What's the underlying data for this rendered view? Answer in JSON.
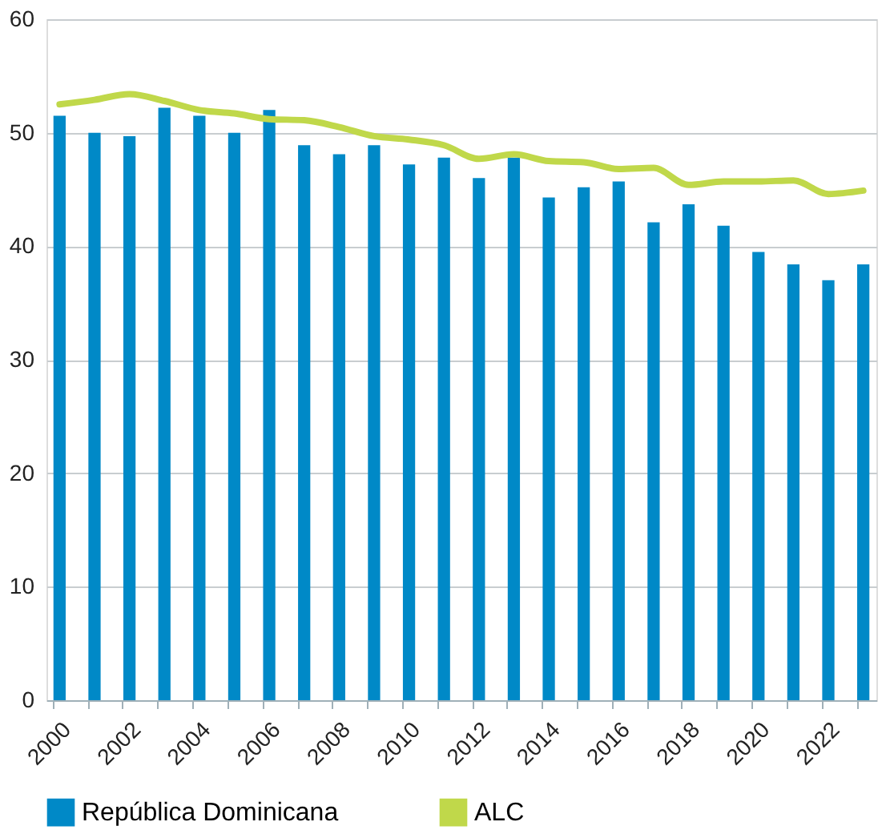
{
  "chart_data": {
    "type": "bar",
    "categories": [
      "2000",
      null,
      "2002",
      null,
      "2004",
      null,
      "2006",
      null,
      "2008",
      null,
      "2010",
      null,
      "2012",
      null,
      "2014",
      null,
      "2016",
      null,
      "2018",
      null,
      "2020",
      null,
      "2022",
      null
    ],
    "series": [
      {
        "name": "República Dominicana",
        "color": "#0089c7",
        "values": [
          51.5,
          50.0,
          49.7,
          52.2,
          51.5,
          50.0,
          52.0,
          48.9,
          48.1,
          48.9,
          47.2,
          47.8,
          46.0,
          47.8,
          44.3,
          45.2,
          45.7,
          42.1,
          43.7,
          41.8,
          39.5,
          38.4,
          37.0,
          38.4
        ]
      },
      {
        "name": "ALC",
        "type": "line",
        "color": "#c0d84a",
        "values": [
          52.5,
          52.9,
          53.4,
          52.8,
          52.0,
          51.7,
          51.2,
          51.1,
          50.5,
          49.7,
          49.4,
          48.9,
          47.7,
          48.1,
          47.5,
          47.4,
          46.8,
          46.9,
          45.4,
          45.7,
          45.7,
          45.8,
          44.6,
          44.9
        ]
      }
    ],
    "ylim": [
      0,
      60
    ],
    "yticks": [
      0,
      10,
      20,
      30,
      40,
      50,
      60
    ],
    "grid": "y",
    "legend": "bottom"
  }
}
